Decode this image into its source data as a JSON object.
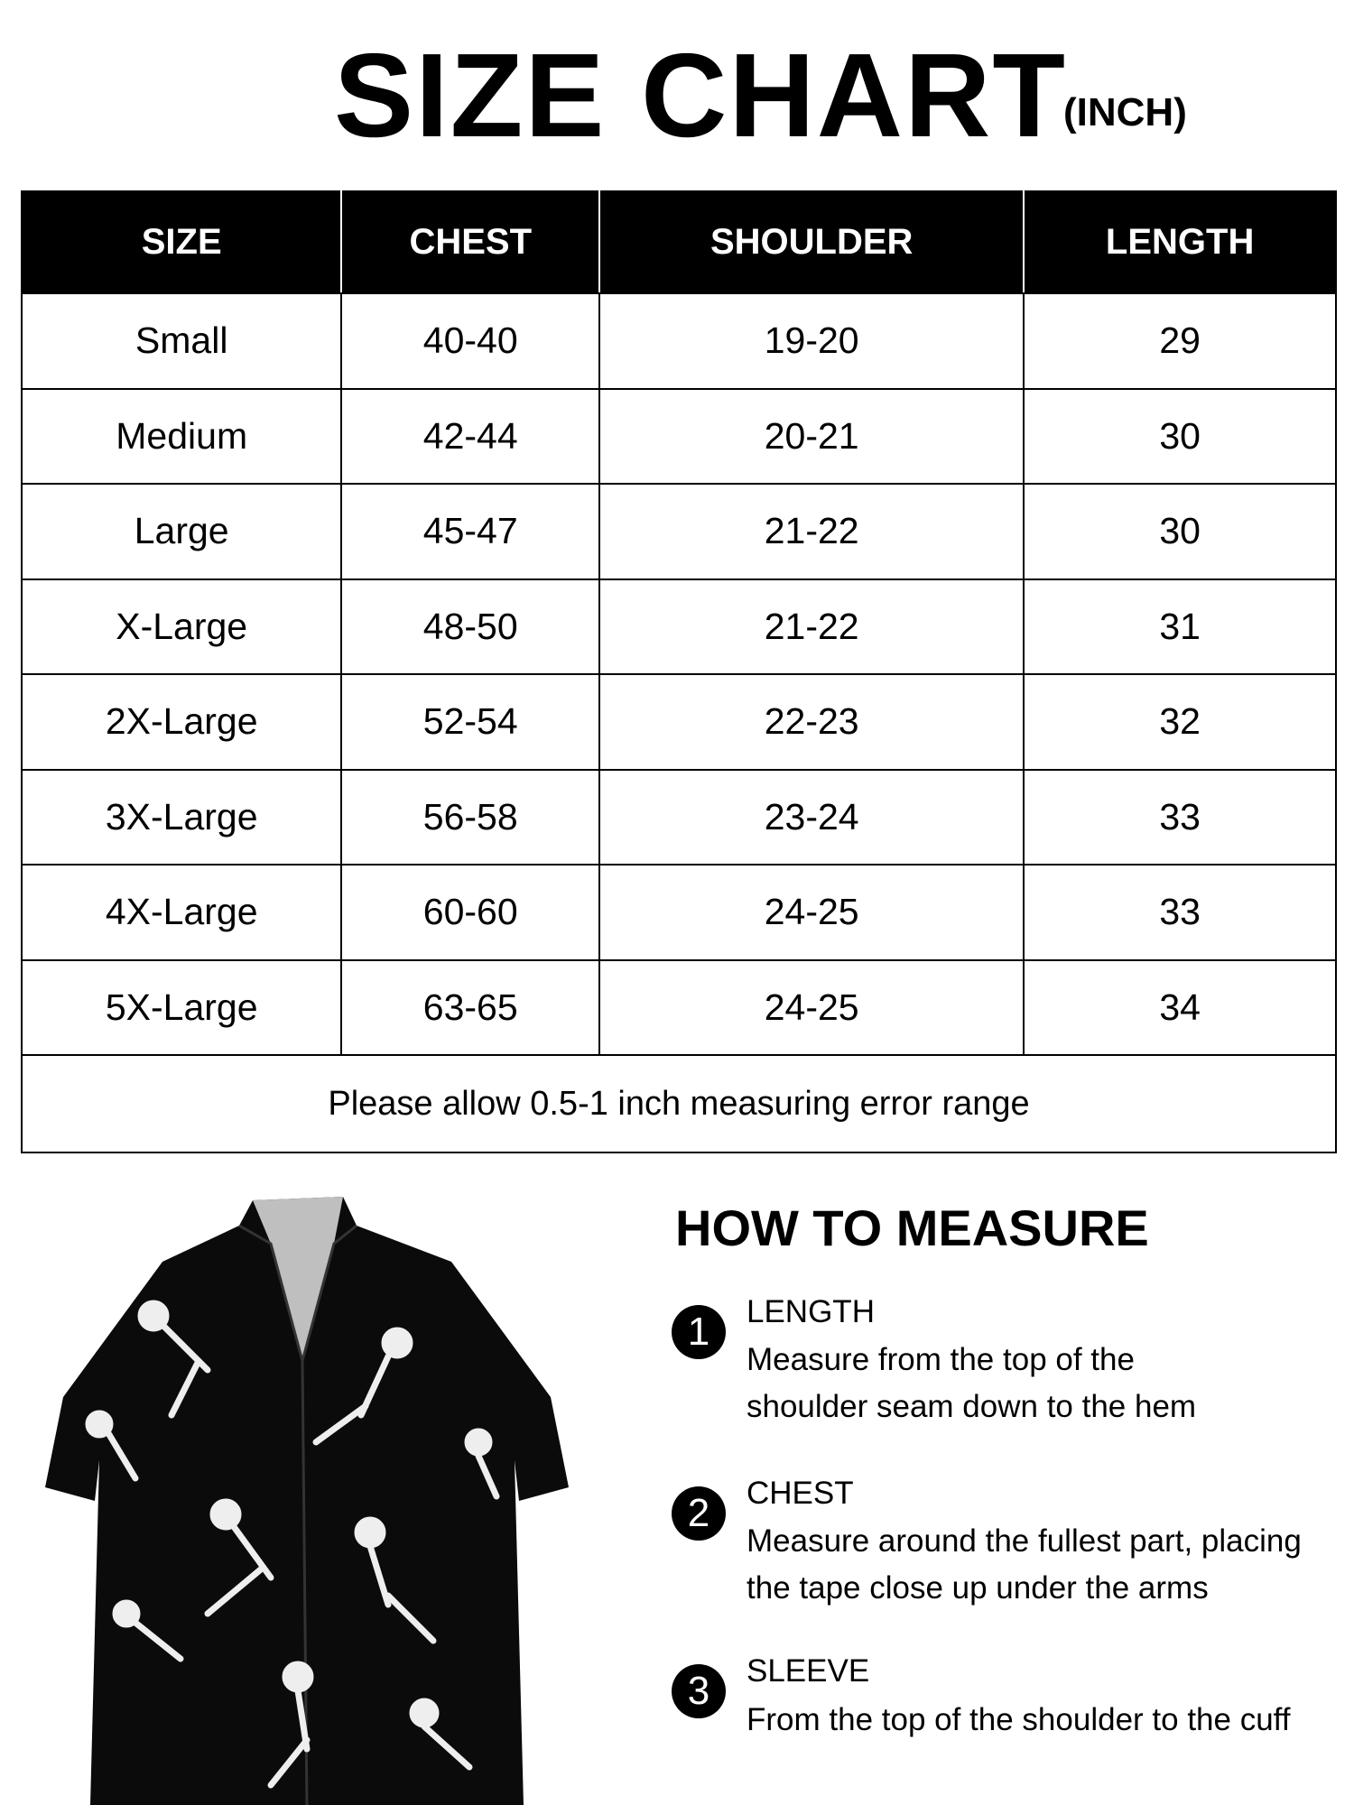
{
  "title": "SIZE CHART",
  "unit": "(INCH)",
  "table": {
    "headers": [
      "SIZE",
      "CHEST",
      "SHOULDER",
      "LENGTH"
    ],
    "rows": [
      [
        "Small",
        "40-40",
        "19-20",
        "29"
      ],
      [
        "Medium",
        "42-44",
        "20-21",
        "30"
      ],
      [
        "Large",
        "45-47",
        "21-22",
        "30"
      ],
      [
        "X-Large",
        "48-50",
        "21-22",
        "31"
      ],
      [
        "2X-Large",
        "52-54",
        "22-23",
        "32"
      ],
      [
        "3X-Large",
        "56-58",
        "23-24",
        "33"
      ],
      [
        "4X-Large",
        "60-60",
        "24-25",
        "33"
      ],
      [
        "5X-Large",
        "63-65",
        "24-25",
        "34"
      ]
    ],
    "note": "Please allow 0.5-1 inch measuring error range"
  },
  "measure": {
    "heading": "HOW TO MEASURE",
    "items": [
      {
        "num": "1",
        "label": "LENGTH",
        "line1": "Measure from the top of the",
        "line2": "shoulder seam down to the hem"
      },
      {
        "num": "2",
        "label": "CHEST",
        "line1": "Measure around the fullest part, placing",
        "line2": "the tape close up under the arms"
      },
      {
        "num": "3",
        "label": "SLEEVE",
        "line1": "From the top of the shoulder to the cuff",
        "line2": ""
      }
    ]
  },
  "product_image": "black short-sleeve shirt with white skeleton print"
}
